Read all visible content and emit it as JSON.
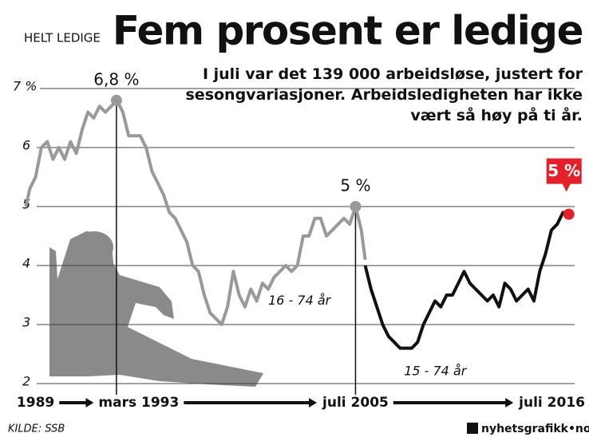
{
  "chart_data": {
    "type": "line",
    "title": "Fem prosent er ledige",
    "subtitle": "I juli var det 139 000 arbeidsløse, justert for sesongvariasjoner. Arbeidsledigheten har ikke vært så høy på ti år.",
    "y_label": "HELT LEDIGE",
    "source": "KILDE: SSB",
    "logo": "nyhetsgrafikk•no",
    "xlim": [
      1988.4,
      2016.8
    ],
    "ylim": [
      2,
      7.5
    ],
    "yticks": [
      2,
      3,
      4,
      5,
      6,
      {
        "value": 7,
        "label": "7 %"
      }
    ],
    "xticks": [
      {
        "value": 1989,
        "label": "1989"
      },
      {
        "value": 1993.17,
        "label": "mars 1993"
      },
      {
        "value": 2005.5,
        "label": "juli 2005"
      },
      {
        "value": 2016.5,
        "label": "juli 2016"
      }
    ],
    "grid": true,
    "series": [
      {
        "name": "16 - 74 år",
        "color": "#999999",
        "label_at": [
          2001.0,
          3.4
        ],
        "x": [
          1988.5,
          1988.7,
          1989.0,
          1989.3,
          1989.6,
          1989.9,
          1990.2,
          1990.5,
          1990.8,
          1991.1,
          1991.4,
          1991.7,
          1992.0,
          1992.3,
          1992.6,
          1992.9,
          1993.2,
          1993.5,
          1993.8,
          1994.1,
          1994.4,
          1994.7,
          1995.0,
          1995.3,
          1995.6,
          1995.9,
          1996.2,
          1996.5,
          1996.8,
          1997.1,
          1997.4,
          1997.7,
          1998.0,
          1998.3,
          1998.6,
          1998.9,
          1999.2,
          1999.5,
          1999.8,
          2000.1,
          2000.4,
          2000.7,
          2001.0,
          2001.3,
          2001.6,
          2001.9,
          2002.2,
          2002.5,
          2002.8,
          2003.1,
          2003.4,
          2003.7,
          2004.0,
          2004.3,
          2004.6,
          2004.9,
          2005.2,
          2005.5,
          2005.8,
          2006.0
        ],
        "values": [
          5.0,
          5.3,
          5.5,
          6.0,
          6.1,
          5.8,
          6.0,
          5.8,
          6.1,
          5.9,
          6.3,
          6.6,
          6.5,
          6.7,
          6.6,
          6.7,
          6.8,
          6.6,
          6.2,
          6.2,
          6.2,
          6.0,
          5.6,
          5.4,
          5.2,
          4.9,
          4.8,
          4.6,
          4.4,
          4.0,
          3.9,
          3.5,
          3.2,
          3.1,
          3.0,
          3.3,
          3.9,
          3.5,
          3.3,
          3.6,
          3.4,
          3.7,
          3.6,
          3.8,
          3.9,
          4.0,
          3.9,
          4.0,
          4.5,
          4.5,
          4.8,
          4.8,
          4.5,
          4.6,
          4.7,
          4.8,
          4.7,
          5.0,
          4.6,
          4.1
        ]
      },
      {
        "name": "15 - 74 år",
        "color": "#111111",
        "label_at": [
          2008.0,
          2.2
        ],
        "x": [
          2006.0,
          2006.3,
          2006.6,
          2006.9,
          2007.2,
          2007.5,
          2007.8,
          2008.1,
          2008.4,
          2008.7,
          2009.0,
          2009.3,
          2009.6,
          2009.9,
          2010.2,
          2010.5,
          2010.8,
          2011.1,
          2011.4,
          2011.7,
          2012.0,
          2012.3,
          2012.6,
          2012.9,
          2013.2,
          2013.5,
          2013.8,
          2014.1,
          2014.4,
          2014.7,
          2015.0,
          2015.3,
          2015.6,
          2015.9,
          2016.2,
          2016.5
        ],
        "values": [
          4.0,
          3.6,
          3.3,
          3.0,
          2.8,
          2.7,
          2.6,
          2.6,
          2.6,
          2.7,
          3.0,
          3.2,
          3.4,
          3.3,
          3.5,
          3.5,
          3.7,
          3.9,
          3.7,
          3.6,
          3.5,
          3.4,
          3.5,
          3.3,
          3.7,
          3.6,
          3.4,
          3.5,
          3.6,
          3.4,
          3.9,
          4.2,
          4.6,
          4.7,
          4.9,
          4.85
        ]
      }
    ],
    "annotations": [
      {
        "text": "6,8 %",
        "x": 1993.17,
        "y": 6.8,
        "color": "#999999"
      },
      {
        "text": "5 %",
        "x": 2005.5,
        "y": 5,
        "color": "#999999"
      },
      {
        "text": "5 %",
        "x": 2016.5,
        "y": 4.87,
        "color": "#e4202a"
      }
    ]
  }
}
